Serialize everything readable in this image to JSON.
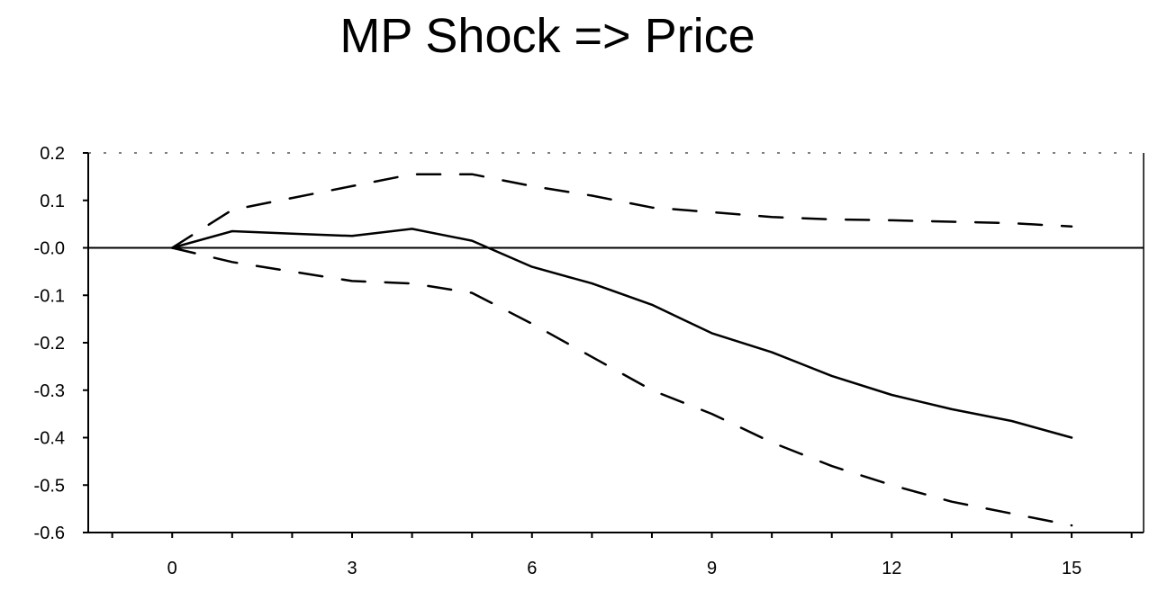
{
  "chart_data": {
    "type": "line",
    "title": "MP Shock => Price",
    "xlabel": "",
    "ylabel": "",
    "xlim": [
      -1.4,
      16.2
    ],
    "ylim": [
      -0.6,
      0.2
    ],
    "x_ticks": [
      0,
      3,
      6,
      9,
      12,
      15
    ],
    "x_tick_labels": [
      "0",
      "3",
      "6",
      "9",
      "12",
      "15"
    ],
    "y_ticks": [
      0.2,
      0.1,
      0.0,
      -0.1,
      -0.2,
      -0.3,
      -0.4,
      -0.5,
      -0.6
    ],
    "y_tick_labels": [
      "0.2",
      "0.1",
      "-0.0",
      "-0.1",
      "-0.2",
      "-0.3",
      "-0.4",
      "-0.5",
      "-0.6"
    ],
    "zero_line": 0.0,
    "grid": false,
    "legend": "none",
    "x": [
      0,
      1,
      2,
      3,
      4,
      5,
      6,
      7,
      8,
      9,
      10,
      11,
      12,
      13,
      14,
      15
    ],
    "series": [
      {
        "style": "solid",
        "values": [
          0.0,
          0.035,
          0.03,
          0.025,
          0.04,
          0.015,
          -0.04,
          -0.075,
          -0.12,
          -0.18,
          -0.22,
          -0.27,
          -0.31,
          -0.34,
          -0.365,
          -0.4
        ]
      },
      {
        "style": "dashed",
        "values": [
          0.0,
          0.08,
          0.105,
          0.13,
          0.155,
          0.155,
          0.13,
          0.11,
          0.085,
          0.075,
          0.065,
          0.06,
          0.058,
          0.055,
          0.052,
          0.045
        ]
      },
      {
        "style": "dashed",
        "values": [
          0.0,
          -0.03,
          -0.05,
          -0.07,
          -0.075,
          -0.095,
          -0.16,
          -0.23,
          -0.3,
          -0.35,
          -0.41,
          -0.46,
          -0.5,
          -0.535,
          -0.56,
          -0.585
        ]
      }
    ],
    "colors": {
      "line": "#000000",
      "axis": "#000000"
    }
  }
}
